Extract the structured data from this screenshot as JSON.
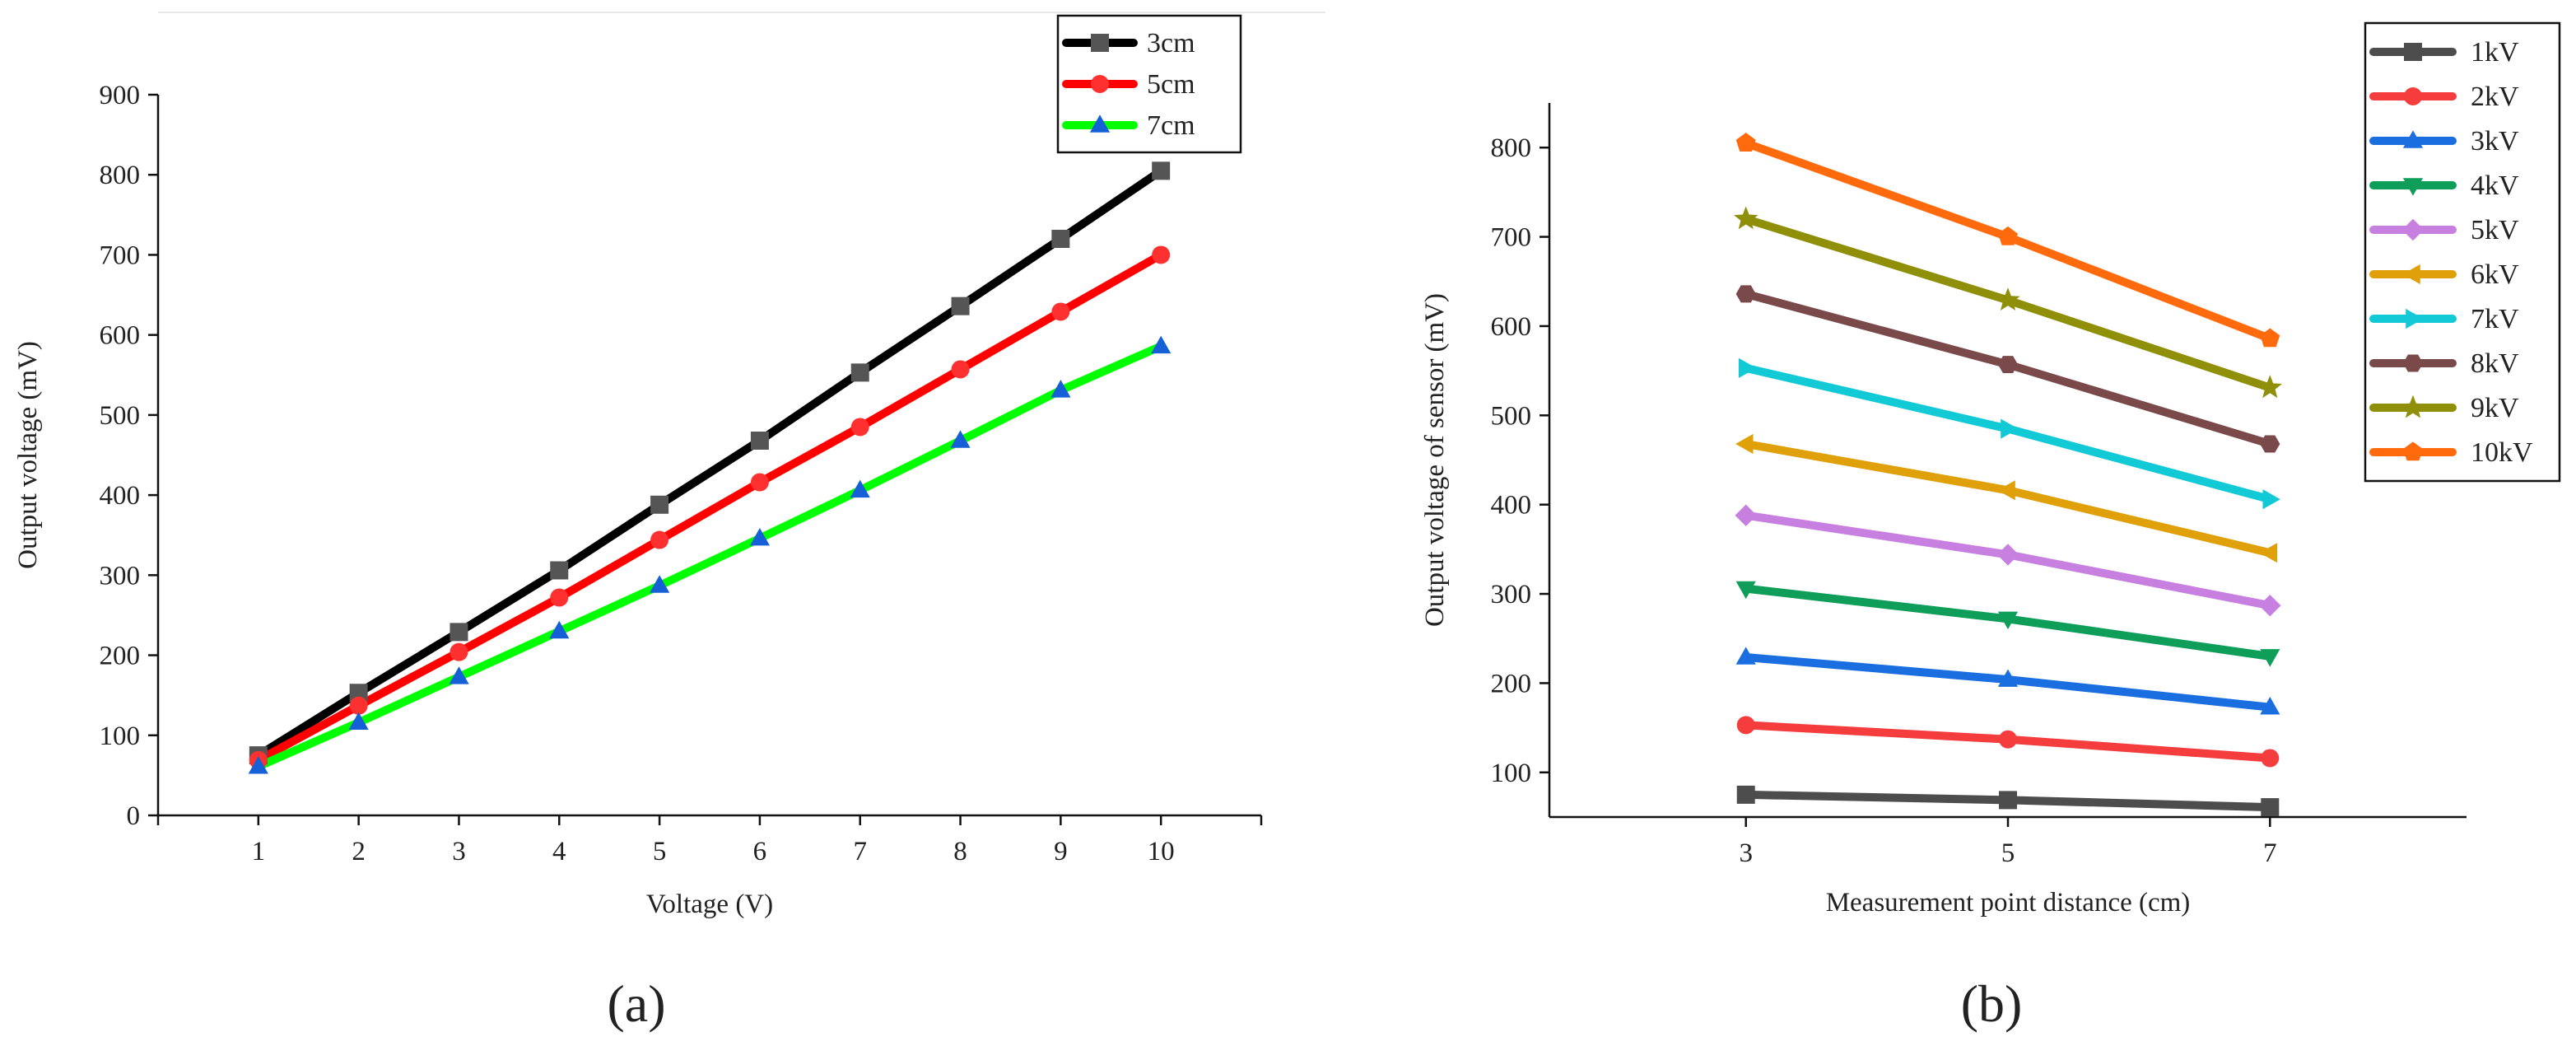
{
  "chart_data": [
    {
      "type": "line",
      "panel_label": "(a)",
      "xlabel": "Voltage (V)",
      "ylabel": "Output voltage (mV)",
      "xlim": [
        0,
        11
      ],
      "ylim": [
        0,
        900
      ],
      "x_ticks": [
        1,
        2,
        3,
        4,
        5,
        6,
        7,
        8,
        9,
        10
      ],
      "y_ticks": [
        0,
        100,
        200,
        300,
        400,
        500,
        600,
        700,
        800,
        900
      ],
      "legend_position": "top-right",
      "x": [
        1,
        2,
        3,
        4,
        5,
        6,
        7,
        8,
        9,
        10
      ],
      "series": [
        {
          "name": "3cm",
          "color": "#000000",
          "marker_color": "#555555",
          "marker": "square",
          "values": [
            75,
            153,
            229,
            306,
            388,
            468,
            553,
            636,
            720,
            805
          ]
        },
        {
          "name": "5cm",
          "color": "#ff0000",
          "marker_color": "#ff3030",
          "marker": "circle",
          "values": [
            69,
            137,
            204,
            272,
            344,
            416,
            485,
            557,
            629,
            700
          ]
        },
        {
          "name": "7cm",
          "color": "#00ff00",
          "marker_color": "#1560d6",
          "marker": "triangle-up",
          "values": [
            61,
            116,
            173,
            230,
            287,
            346,
            406,
            468,
            531,
            586
          ]
        }
      ]
    },
    {
      "type": "line",
      "panel_label": "(b)",
      "xlabel": "Measurement point distance (cm)",
      "ylabel": "Output voltage of sensor (mV)",
      "xlim": [
        1.5,
        8.5
      ],
      "ylim": [
        50,
        850
      ],
      "x_ticks": [
        3,
        5,
        7
      ],
      "y_ticks": [
        100,
        200,
        300,
        400,
        500,
        600,
        700,
        800
      ],
      "legend_position": "top-right",
      "x": [
        3,
        5,
        7
      ],
      "series": [
        {
          "name": "1kV",
          "color": "#4d4d4d",
          "marker": "square",
          "values": [
            75,
            69,
            61
          ]
        },
        {
          "name": "2kV",
          "color": "#f53d3d",
          "marker": "circle",
          "values": [
            153,
            137,
            116
          ]
        },
        {
          "name": "3kV",
          "color": "#1a6ee0",
          "marker": "triangle-up",
          "values": [
            229,
            204,
            173
          ]
        },
        {
          "name": "4kV",
          "color": "#0f9e5a",
          "marker": "triangle-down",
          "values": [
            306,
            272,
            230
          ]
        },
        {
          "name": "5kV",
          "color": "#c77fe0",
          "marker": "diamond",
          "values": [
            388,
            344,
            287
          ]
        },
        {
          "name": "6kV",
          "color": "#e0a00a",
          "marker": "triangle-left",
          "values": [
            468,
            416,
            346
          ]
        },
        {
          "name": "7kV",
          "color": "#12c9d6",
          "marker": "triangle-right",
          "values": [
            553,
            485,
            406
          ]
        },
        {
          "name": "8kV",
          "color": "#7a4a4a",
          "marker": "hexagon",
          "values": [
            636,
            557,
            468
          ]
        },
        {
          "name": "9kV",
          "color": "#8f8f0a",
          "marker": "star",
          "values": [
            720,
            629,
            531
          ]
        },
        {
          "name": "10kV",
          "color": "#ff6a0d",
          "marker": "pentagon",
          "values": [
            805,
            700,
            586
          ]
        }
      ]
    }
  ]
}
